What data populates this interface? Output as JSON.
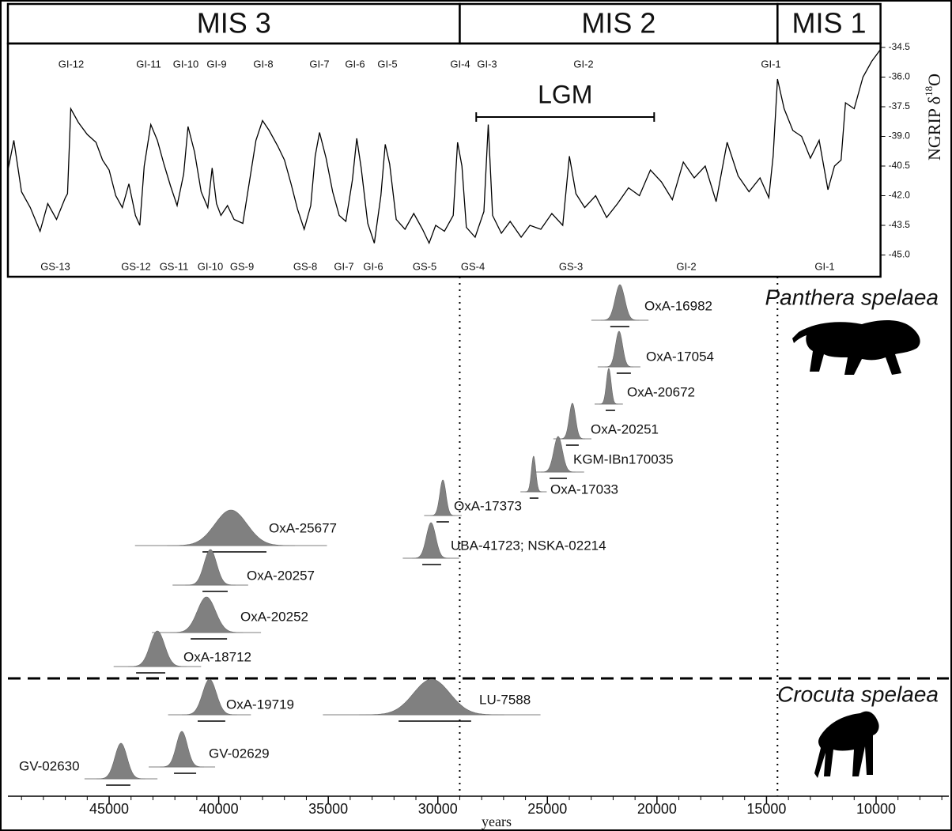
{
  "chart_data": [
    {
      "type": "line",
      "stages": [
        {
          "label": "MIS 3",
          "range": [
            49620,
            29000
          ]
        },
        {
          "label": "MIS 2",
          "range": [
            29000,
            14500
          ]
        },
        {
          "label": "MIS 1",
          "range": [
            14500,
            9800
          ]
        }
      ],
      "gi_labels": [
        "GI-12",
        "GI-11",
        "GI-10",
        "GI-9",
        "GI-8",
        "GI-7",
        "GI-6",
        "GI-5",
        "GI-4",
        "GI-3",
        "GI-2",
        "GI-1"
      ],
      "gs_labels": [
        "GS-13",
        "GS-12",
        "GS-11",
        "GI-10",
        "GS-9",
        "GS-8",
        "GI-7",
        "GI-6",
        "GS-5",
        "GS-4",
        "GS-3",
        "GI-2",
        "GI-1"
      ],
      "lgm": {
        "label": "LGM",
        "range": [
          28250,
          20130
        ]
      },
      "y_label": {
        "text": "NGRIP δ",
        "sup": "18",
        "end": "O"
      },
      "color": "#000000",
      "xlim": [
        49620,
        9800
      ],
      "ylim": [
        -46.1,
        -34.3
      ],
      "yticks": [
        -34.5,
        {
          "value": -36,
          "label": "-36.0"
        },
        -37.5,
        {
          "value": -39,
          "label": "-39.0"
        },
        -40.5,
        {
          "value": -42,
          "label": "-42.0"
        },
        -43.5,
        {
          "value": -45,
          "label": "-45.0"
        }
      ],
      "x": [
        49600,
        49350,
        49000,
        48600,
        48150,
        47800,
        47400,
        47000,
        46900,
        46750,
        46400,
        46000,
        45600,
        45300,
        45000,
        44700,
        44400,
        44100,
        43800,
        43600,
        43400,
        43100,
        42800,
        42500,
        42200,
        41900,
        41600,
        41400,
        41100,
        40800,
        40500,
        40300,
        40100,
        39900,
        39600,
        39300,
        38900,
        38600,
        38300,
        38000,
        37700,
        37300,
        37000,
        36700,
        36400,
        36100,
        35800,
        35600,
        35400,
        35100,
        34800,
        34500,
        34200,
        33900,
        33700,
        33500,
        33200,
        32900,
        32600,
        32400,
        32200,
        31900,
        31500,
        31100,
        30700,
        30400,
        30100,
        29700,
        29300,
        29100,
        28900,
        28700,
        28300,
        27900,
        27700,
        27500,
        27100,
        26700,
        26200,
        25800,
        25300,
        24800,
        24300,
        24000,
        23700,
        23300,
        22800,
        22300,
        21800,
        21300,
        20800,
        20300,
        19800,
        19300,
        18800,
        18300,
        17800,
        17300,
        16800,
        16300,
        15800,
        15300,
        14900,
        14700,
        14500,
        14200,
        13800,
        13400,
        13000,
        12600,
        12200,
        11900,
        11600,
        11400,
        11000,
        10600,
        10200,
        9800
      ],
      "values": [
        -40.6,
        -39.2,
        -41.8,
        -42.6,
        -43.8,
        -42.4,
        -43.2,
        -42.1,
        -41.9,
        -37.6,
        -38.3,
        -38.9,
        -39.3,
        -40.2,
        -40.7,
        -42.0,
        -42.6,
        -41.4,
        -43.0,
        -43.5,
        -40.5,
        -38.4,
        -39.2,
        -40.4,
        -41.5,
        -42.5,
        -40.9,
        -38.5,
        -39.8,
        -41.8,
        -42.6,
        -40.6,
        -42.4,
        -43.0,
        -42.5,
        -43.2,
        -43.4,
        -41.3,
        -39.2,
        -38.2,
        -38.7,
        -39.5,
        -40.2,
        -41.4,
        -42.7,
        -43.7,
        -42.5,
        -40.0,
        -38.8,
        -40.1,
        -41.8,
        -43.0,
        -43.3,
        -41.2,
        -39.1,
        -40.6,
        -43.4,
        -44.4,
        -42.0,
        -39.4,
        -40.4,
        -43.2,
        -43.7,
        -42.9,
        -43.7,
        -44.4,
        -43.5,
        -43.8,
        -43.0,
        -39.3,
        -40.5,
        -43.6,
        -44.1,
        -42.8,
        -38.4,
        -43.0,
        -43.9,
        -43.3,
        -44.1,
        -43.5,
        -43.7,
        -42.9,
        -43.5,
        -40.0,
        -41.9,
        -42.6,
        -42.0,
        -43.1,
        -42.4,
        -41.6,
        -42.0,
        -40.7,
        -41.3,
        -42.2,
        -40.3,
        -41.1,
        -40.5,
        -42.3,
        -39.3,
        -41.0,
        -41.8,
        -41.1,
        -42.1,
        -40.0,
        -36.1,
        -37.6,
        -38.7,
        -39.0,
        -40.1,
        -39.2,
        -41.7,
        -40.5,
        -40.2,
        -37.3,
        -37.6,
        -36.0,
        -35.2,
        -34.6
      ]
    },
    {
      "type": "range",
      "color": "#808080",
      "xlim": [
        49620,
        6680
      ],
      "xticks": [
        45000,
        40000,
        35000,
        30000,
        25000,
        20000,
        15000,
        10000
      ],
      "x_label": "years",
      "groups": [
        {
          "name": "Panthera spelaea",
          "dates": [
            {
              "label": "OxA-16982",
              "peak": 21690,
              "range": [
                22130,
                21260
              ]
            },
            {
              "label": "OxA-17054",
              "peak": 21730,
              "range": [
                21840,
                21190
              ]
            },
            {
              "label": "OxA-20672",
              "peak": 22200,
              "range": [
                22340,
                21910
              ]
            },
            {
              "label": "OxA-20251",
              "peak": 23860,
              "range": [
                24150,
                23570
              ]
            },
            {
              "label": "KGM-IBn170035",
              "peak": 24510,
              "range": [
                24900,
                24110
              ]
            },
            {
              "label": "OxA-17033",
              "peak": 25630,
              "range": [
                25810,
                25410
              ]
            },
            {
              "label": "OxA-17373",
              "peak": 29770,
              "range": [
                30060,
                29490
              ]
            },
            {
              "label": "UBA-41723; NSKA-02214",
              "peak": 30310,
              "range": [
                30710,
                29850
              ]
            },
            {
              "label": "OxA-25677",
              "peak": 39440,
              "range": [
                40740,
                37820
              ]
            },
            {
              "label": "OxA-20257",
              "peak": 40380,
              "range": [
                40740,
                39590
              ]
            },
            {
              "label": "OxA-20252",
              "peak": 40560,
              "range": [
                41280,
                39620
              ]
            },
            {
              "label": "OxA-18712",
              "peak": 42800,
              "range": [
                43770,
                42440
              ]
            }
          ]
        },
        {
          "name": "Crocuta spelaea",
          "dates": [
            {
              "label": "OxA-19719",
              "peak": 40420,
              "range": [
                40960,
                39700
              ]
            },
            {
              "label": "LU-7588",
              "peak": 30280,
              "range": [
                31790,
                28480
              ]
            },
            {
              "label": "GV-02629",
              "peak": 41680,
              "range": [
                42040,
                41030
              ]
            },
            {
              "label": "GV-02630",
              "peak": 44460,
              "range": [
                45140,
                44030
              ]
            }
          ]
        }
      ]
    }
  ]
}
